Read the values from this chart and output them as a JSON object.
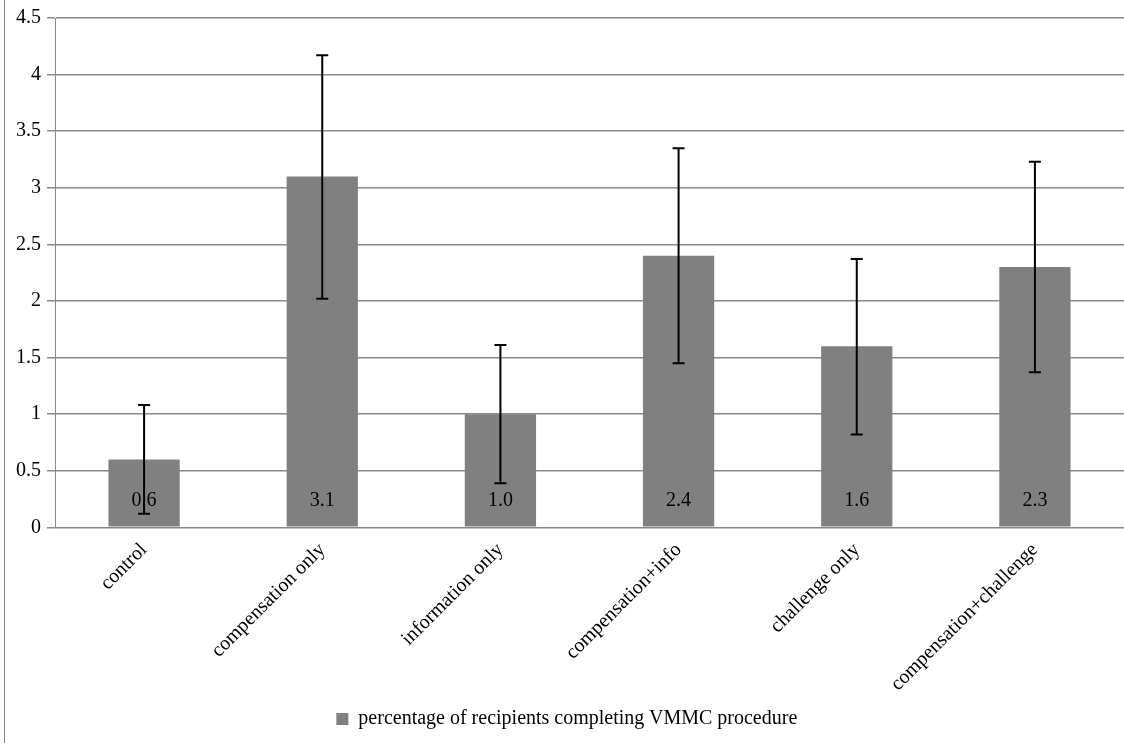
{
  "chart_data": {
    "type": "bar",
    "categories": [
      "control",
      "compensation only",
      "information only",
      "compensation+info",
      "challenge only",
      "compensation+challenge"
    ],
    "series": [
      {
        "name": "percentage of recipients completing VMMC procedure",
        "color": "#808080",
        "values": [
          0.6,
          3.1,
          1.0,
          2.4,
          1.6,
          2.3
        ],
        "value_labels": [
          "0.6",
          "3.1",
          "1.0",
          "2.4",
          "1.6",
          "2.3"
        ],
        "errors": [
          [
            0.12,
            1.08
          ],
          [
            2.02,
            4.17
          ],
          [
            0.39,
            1.61
          ],
          [
            1.45,
            3.35
          ],
          [
            0.82,
            2.37
          ],
          [
            1.37,
            3.23
          ]
        ]
      }
    ],
    "ylim": [
      0,
      4.5
    ],
    "yticks": [
      0,
      0.5,
      1,
      1.5,
      2,
      2.5,
      3,
      3.5,
      4,
      4.5
    ],
    "grid": "y",
    "legend": "bottom"
  }
}
